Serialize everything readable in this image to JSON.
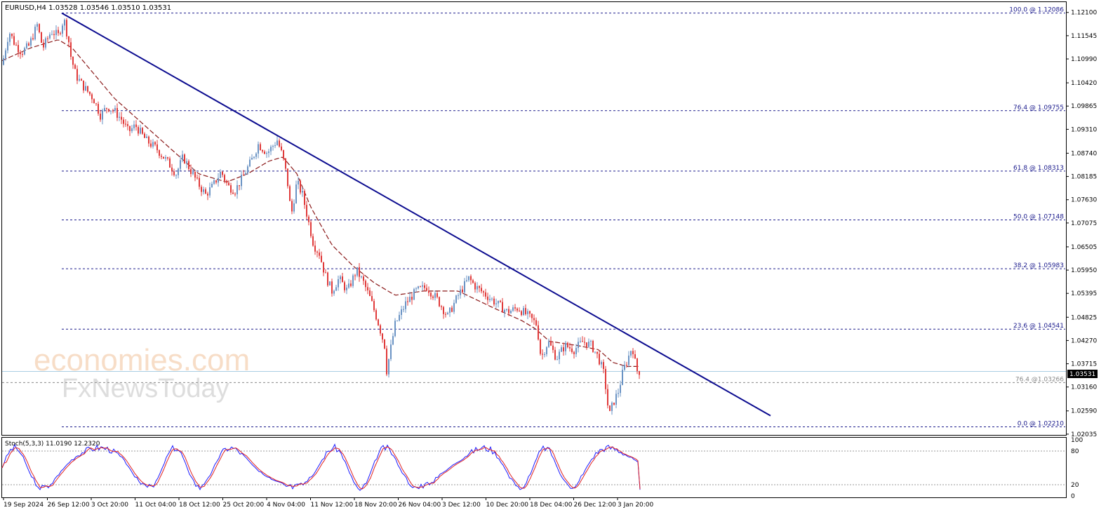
{
  "symbol_header": "EURUSD,H4  1.03528 1.03546 1.03510 1.03531",
  "watermark": {
    "line1": "economies.com",
    "line2": "FxNewsToday"
  },
  "colors": {
    "bull": "#6a93c4",
    "bear": "#e03a3a",
    "trend": "#0b0b8f",
    "ma": "#8b1a1a",
    "fib": "#1a1a8c",
    "stoch_main": "#1a1aff",
    "stoch_signal": "#e02020",
    "price_line": "#a9cde3"
  },
  "current_price_label": "1.03531",
  "stoch_label": "Stoch(5,3,3) 11.0190 12.2320",
  "chart_data": {
    "type": "candlestick",
    "symbol": "EURUSD",
    "timeframe": "H4",
    "ohlc_header": {
      "open": 1.03528,
      "high": 1.03546,
      "low": 1.0351,
      "close": 1.03531
    },
    "ylim": [
      1.0205,
      1.1233
    ],
    "y_ticks": [
      "1.12100",
      "1.11545",
      "1.10990",
      "1.10420",
      "1.09865",
      "1.09310",
      "1.08740",
      "1.08185",
      "1.07630",
      "1.07075",
      "1.06505",
      "1.05950",
      "1.05395",
      "1.04825",
      "1.04270",
      "1.03715",
      "1.03160",
      "1.02590",
      "1.02035"
    ],
    "x_ticks": [
      "19 Sep 2024",
      "26 Sep 12:00",
      "3 Oct 20:00",
      "11 Oct 04:00",
      "18 Oct 12:00",
      "25 Oct 20:00",
      "4 Nov 04:00",
      "11 Nov 12:00",
      "18 Nov 20:00",
      "26 Nov 04:00",
      "3 Dec 12:00",
      "10 Dec 20:00",
      "18 Dec 04:00",
      "26 Dec 12:00",
      "3 Jan 20:00"
    ],
    "fib_levels": [
      {
        "label": "100.0 @ 1.12086",
        "value": 1.12086
      },
      {
        "label": "76.4 @ 1.09755",
        "value": 1.09755
      },
      {
        "label": "61.8 @ 1.08313",
        "value": 1.08313
      },
      {
        "label": "50.0 @ 1.07148",
        "value": 1.07148
      },
      {
        "label": "38.2 @ 1.05983",
        "value": 1.05983
      },
      {
        "label": "23.6 @ 1.04541",
        "value": 1.04541
      },
      {
        "label": "76.4 @1.03266",
        "value": 1.03266
      },
      {
        "label": "0.0 @ 1.02210",
        "value": 1.0221
      }
    ],
    "current_price": 1.03531,
    "close_path_x": [
      0,
      10,
      18,
      28,
      38,
      50,
      58,
      70,
      80,
      88,
      95,
      98,
      105,
      115,
      130,
      140,
      150,
      160,
      170,
      180,
      190,
      205,
      220,
      235,
      248,
      258,
      268,
      278,
      290,
      300,
      312,
      322,
      332,
      342,
      355,
      365,
      378,
      392,
      400,
      406,
      412,
      420,
      428,
      436,
      444,
      452,
      460,
      470,
      480,
      492,
      505,
      515,
      525,
      535,
      545,
      548,
      560,
      575,
      590,
      605,
      620,
      635,
      650,
      665,
      675,
      690,
      705,
      720,
      735,
      750,
      762,
      768,
      778,
      790,
      802,
      815,
      828,
      840,
      850,
      858,
      865,
      870,
      878,
      885,
      892,
      898,
      904,
      910
    ],
    "close_path": [
      1.1085,
      1.1165,
      1.1135,
      1.1115,
      1.113,
      1.118,
      1.1125,
      1.1165,
      1.1155,
      1.1195,
      1.114,
      1.1105,
      1.106,
      1.1035,
      1.1005,
      1.0965,
      1.0985,
      1.0975,
      1.0955,
      1.0925,
      1.094,
      1.0905,
      1.0885,
      1.0855,
      1.0825,
      1.0865,
      1.0835,
      1.0805,
      1.0775,
      1.0795,
      1.083,
      1.0795,
      1.0785,
      1.0815,
      1.0855,
      1.0895,
      1.0875,
      1.0905,
      1.0865,
      1.0815,
      1.0725,
      1.0805,
      1.0775,
      1.0715,
      1.0655,
      1.0635,
      1.0585,
      1.0545,
      1.0575,
      1.0545,
      1.0595,
      1.0565,
      1.0525,
      1.0475,
      1.0415,
      1.0355,
      1.0465,
      1.0515,
      1.0545,
      1.0555,
      1.0525,
      1.0485,
      1.0535,
      1.0575,
      1.0555,
      1.0535,
      1.0515,
      1.0495,
      1.0505,
      1.0485,
      1.0465,
      1.0385,
      1.0425,
      1.0385,
      1.0415,
      1.0405,
      1.0425,
      1.0415,
      1.0385,
      1.0345,
      1.0245,
      1.0275,
      1.0305,
      1.0355,
      1.0385,
      1.0415,
      1.0355,
      1.0353
    ],
    "ma_path_x": [
      0,
      40,
      80,
      100,
      130,
      160,
      200,
      240,
      280,
      320,
      350,
      380,
      400,
      420,
      440,
      470,
      500,
      530,
      560,
      600,
      650,
      700,
      740,
      760,
      780,
      820,
      850,
      870,
      890,
      910
    ],
    "ma_path": [
      1.1095,
      1.1125,
      1.1145,
      1.1125,
      1.1065,
      1.1005,
      1.0945,
      1.0885,
      1.0825,
      1.0805,
      1.0825,
      1.0855,
      1.0865,
      1.0825,
      1.0745,
      1.0655,
      1.0605,
      1.0565,
      1.0535,
      1.0545,
      1.0545,
      1.0505,
      1.0475,
      1.0455,
      1.0425,
      1.0415,
      1.0405,
      1.0375,
      1.0365,
      1.0365
    ],
    "trendline": {
      "from": [
        "26 Sep",
        1.12086
      ],
      "to": [
        "end",
        1.02475
      ]
    },
    "stoch_ylim": [
      0,
      100
    ],
    "stoch_levels": [
      20,
      80
    ],
    "stoch_y_ticks": [
      "100",
      "80",
      "20",
      "0"
    ],
    "stochastic": {
      "k": 11.019,
      "d": 12.232
    }
  }
}
